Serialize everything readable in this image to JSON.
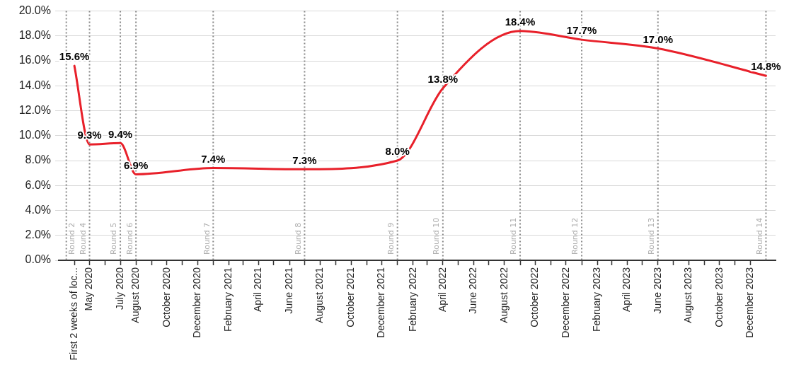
{
  "chart_data": {
    "type": "line",
    "x": [
      "2020-04-01",
      "2020-05-01",
      "2020-07-01",
      "2020-08-01",
      "2021-01-01",
      "2021-07-01",
      "2022-01-01",
      "2022-04-01",
      "2022-09-01",
      "2023-01-01",
      "2023-06-01",
      "2024-01-01"
    ],
    "series": [
      {
        "color": "#e8202a",
        "values": [
          15.6,
          9.3,
          9.4,
          6.9,
          7.4,
          7.3,
          8.0,
          13.8,
          18.4,
          17.7,
          17.0,
          14.8
        ],
        "value_labels": [
          "15.6%",
          "9.3%",
          "9.4%",
          "6.9%",
          "7.4%",
          "7.3%",
          "8.0%",
          "13.8%",
          "18.4%",
          "17.7%",
          "17.0%",
          "14.8%"
        ]
      }
    ],
    "xlim": [
      "2020-03-01",
      "2024-01-20"
    ],
    "xticks": [
      {
        "value": "2020-04-01",
        "label": "First 2 weeks of loc..."
      },
      {
        "value": "2020-05-01",
        "label": "May 2020"
      },
      {
        "value": "2020-06-01",
        "label": null
      },
      {
        "value": "2020-07-01",
        "label": "July 2020"
      },
      {
        "value": "2020-08-01",
        "label": "August 2020"
      },
      {
        "value": "2020-09-01",
        "label": null
      },
      {
        "value": "2020-10-01",
        "label": "October 2020"
      },
      {
        "value": "2020-11-01",
        "label": null
      },
      {
        "value": "2020-12-01",
        "label": "December 2020"
      },
      {
        "value": "2021-01-01",
        "label": null
      },
      {
        "value": "2021-02-01",
        "label": "February 2021"
      },
      {
        "value": "2021-03-01",
        "label": null
      },
      {
        "value": "2021-04-01",
        "label": "April 2021"
      },
      {
        "value": "2021-05-01",
        "label": null
      },
      {
        "value": "2021-06-01",
        "label": "June 2021"
      },
      {
        "value": "2021-07-01",
        "label": null
      },
      {
        "value": "2021-08-01",
        "label": "August 2021"
      },
      {
        "value": "2021-09-01",
        "label": null
      },
      {
        "value": "2021-10-01",
        "label": "October 2021"
      },
      {
        "value": "2021-11-01",
        "label": null
      },
      {
        "value": "2021-12-01",
        "label": "December 2021"
      },
      {
        "value": "2022-01-01",
        "label": null
      },
      {
        "value": "2022-02-01",
        "label": "February 2022"
      },
      {
        "value": "2022-03-01",
        "label": null
      },
      {
        "value": "2022-04-01",
        "label": "April 2022"
      },
      {
        "value": "2022-05-01",
        "label": null
      },
      {
        "value": "2022-06-01",
        "label": "June 2022"
      },
      {
        "value": "2022-07-01",
        "label": null
      },
      {
        "value": "2022-08-01",
        "label": "August 2022"
      },
      {
        "value": "2022-09-01",
        "label": null
      },
      {
        "value": "2022-10-01",
        "label": "October 2022"
      },
      {
        "value": "2022-11-01",
        "label": null
      },
      {
        "value": "2022-12-01",
        "label": "December 2022"
      },
      {
        "value": "2023-01-01",
        "label": null
      },
      {
        "value": "2023-02-01",
        "label": "February 2023"
      },
      {
        "value": "2023-03-01",
        "label": null
      },
      {
        "value": "2023-04-01",
        "label": "April 2023"
      },
      {
        "value": "2023-05-01",
        "label": null
      },
      {
        "value": "2023-06-01",
        "label": "June 2023"
      },
      {
        "value": "2023-07-01",
        "label": null
      },
      {
        "value": "2023-08-01",
        "label": "August 2023"
      },
      {
        "value": "2023-09-01",
        "label": null
      },
      {
        "value": "2023-10-01",
        "label": "October 2023"
      },
      {
        "value": "2023-11-01",
        "label": null
      },
      {
        "value": "2023-12-01",
        "label": "December 2023"
      }
    ],
    "ylim": [
      0,
      20
    ],
    "yticks": [
      {
        "value": 0,
        "label": "0.0%"
      },
      {
        "value": 2,
        "label": "2.0%"
      },
      {
        "value": 4,
        "label": "4.0%"
      },
      {
        "value": 6,
        "label": "6.0%"
      },
      {
        "value": 8,
        "label": "8.0%"
      },
      {
        "value": 10,
        "label": "10.0%"
      },
      {
        "value": 12,
        "label": "12.0%"
      },
      {
        "value": 14,
        "label": "14.0%"
      },
      {
        "value": 16,
        "label": "16.0%"
      },
      {
        "value": 18,
        "label": "18.0%"
      },
      {
        "value": 20,
        "label": "20.0%"
      }
    ],
    "ref_lines": [
      {
        "axis": "x",
        "value": "2020-03-16",
        "label": "Round 2",
        "color": "#888888",
        "line_style": "dotted"
      },
      {
        "axis": "x",
        "value": "2020-05-01",
        "label": "Round 4",
        "color": "#888888",
        "line_style": "dotted"
      },
      {
        "axis": "x",
        "value": "2020-07-01",
        "label": "Round 5",
        "color": "#888888",
        "line_style": "dotted"
      },
      {
        "axis": "x",
        "value": "2020-08-01",
        "label": "Round 6",
        "color": "#888888",
        "line_style": "dotted"
      },
      {
        "axis": "x",
        "value": "2021-01-01",
        "label": "Round 7",
        "color": "#888888",
        "line_style": "dotted"
      },
      {
        "axis": "x",
        "value": "2021-07-01",
        "label": "Round 8",
        "color": "#888888",
        "line_style": "dotted"
      },
      {
        "axis": "x",
        "value": "2022-01-01",
        "label": "Round 9",
        "color": "#888888",
        "line_style": "dotted"
      },
      {
        "axis": "x",
        "value": "2022-04-01",
        "label": "Round 10",
        "color": "#888888",
        "line_style": "dotted"
      },
      {
        "axis": "x",
        "value": "2022-09-01",
        "label": "Round 11",
        "color": "#888888",
        "line_style": "dotted"
      },
      {
        "axis": "x",
        "value": "2023-01-01",
        "label": "Round 12",
        "color": "#888888",
        "line_style": "dotted"
      },
      {
        "axis": "x",
        "value": "2023-06-01",
        "label": "Round 13",
        "color": "#888888",
        "line_style": "dotted"
      },
      {
        "axis": "x",
        "value": "2024-01-01",
        "label": "Round 14",
        "color": "#888888",
        "line_style": "dotted"
      }
    ],
    "grid": "y",
    "legend": false,
    "marker": "none",
    "line_style": "solid"
  }
}
